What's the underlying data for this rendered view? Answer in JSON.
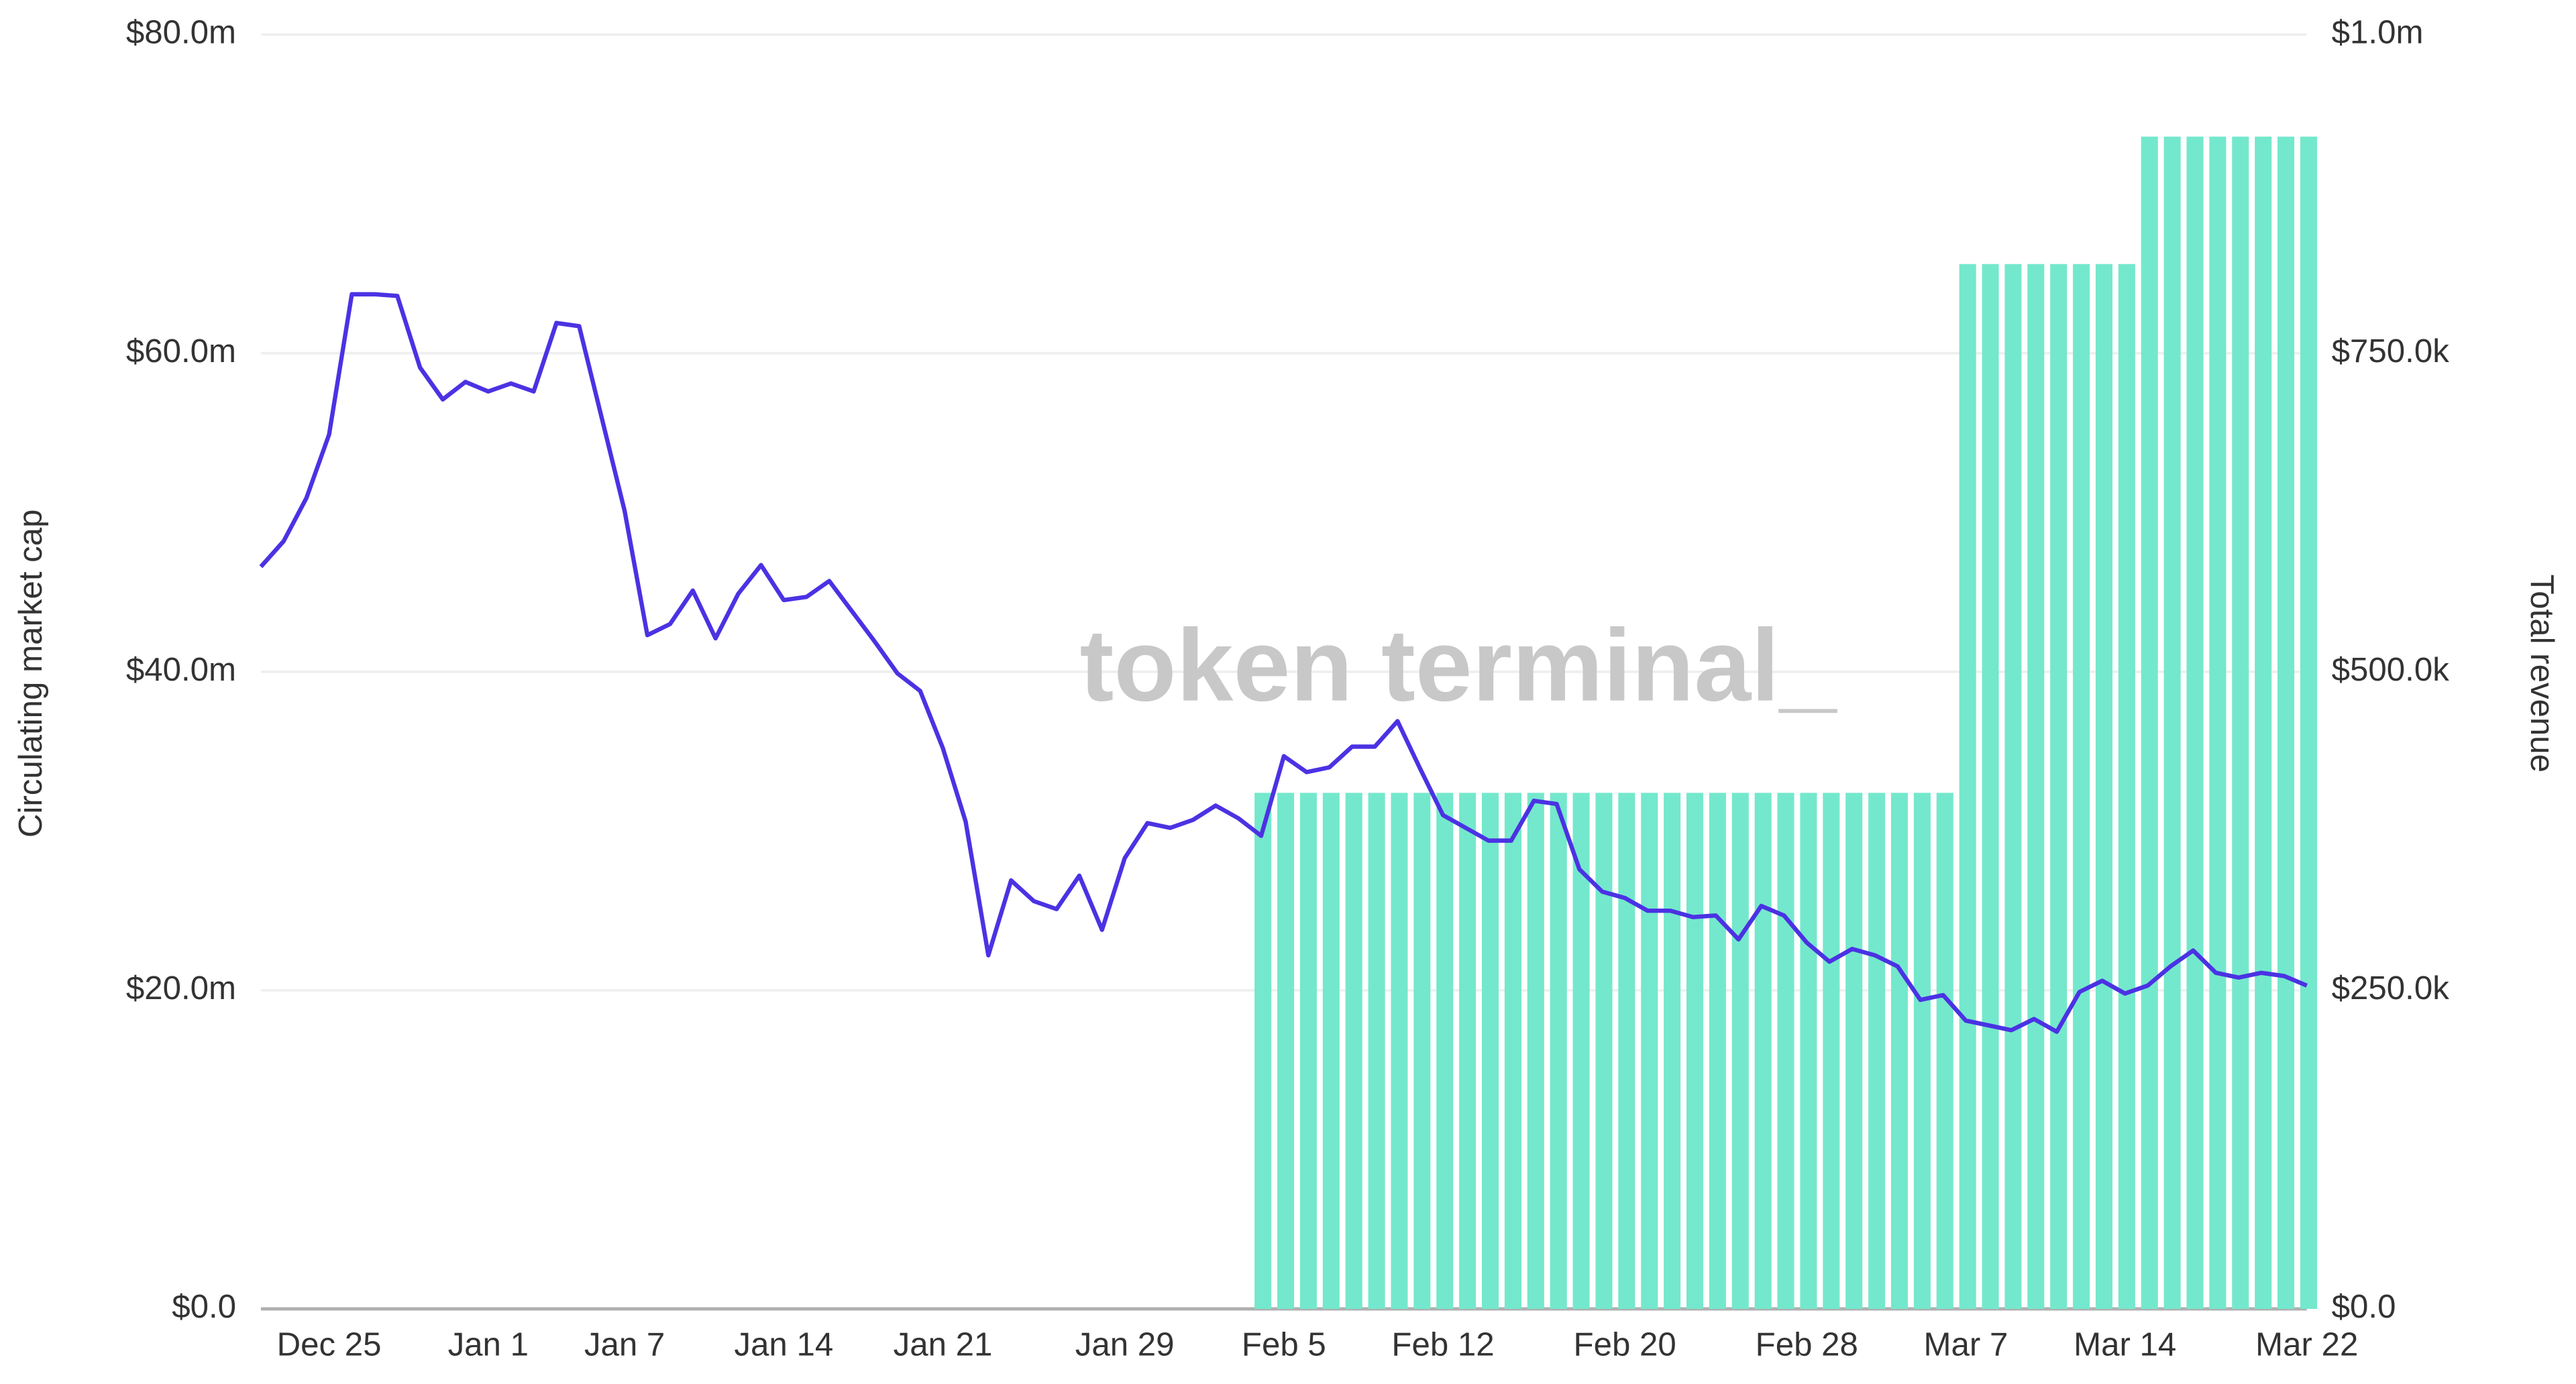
{
  "chart_data": {
    "type": "bar-line",
    "watermark": "token terminal_",
    "y_label": "Circulating market cap",
    "y2_label": "Total revenue",
    "categories": [
      null,
      null,
      null,
      "Dec 25",
      null,
      null,
      null,
      null,
      null,
      null,
      "Jan 1",
      null,
      null,
      null,
      null,
      null,
      "Jan 7",
      null,
      null,
      null,
      null,
      null,
      null,
      "Jan 14",
      null,
      null,
      null,
      null,
      null,
      null,
      "Jan 21",
      null,
      null,
      null,
      null,
      null,
      null,
      null,
      "Jan 29",
      null,
      null,
      null,
      null,
      null,
      null,
      "Feb 5",
      null,
      null,
      null,
      null,
      null,
      null,
      "Feb 12",
      null,
      null,
      null,
      null,
      null,
      null,
      null,
      "Feb 20",
      null,
      null,
      null,
      null,
      null,
      null,
      null,
      "Feb 28",
      null,
      null,
      null,
      null,
      null,
      null,
      "Mar 7",
      null,
      null,
      null,
      null,
      null,
      null,
      "Mar 14",
      null,
      null,
      null,
      null,
      null,
      null,
      null,
      "Mar 22"
    ],
    "series": [
      {
        "name": "Circulating market cap",
        "type": "line",
        "color": "#4b32e3",
        "axis": "y",
        "values": [
          46.6,
          48.2,
          50.9,
          54.9,
          63.7,
          63.7,
          63.6,
          59.1,
          57.1,
          58.2,
          57.6,
          58.1,
          57.6,
          61.9,
          61.7,
          55.9,
          50.1,
          42.3,
          43.0,
          45.1,
          42.1,
          44.9,
          46.7,
          44.5,
          44.7,
          45.7,
          43.8,
          41.9,
          39.9,
          38.8,
          35.2,
          30.6,
          22.2,
          26.9,
          25.6,
          25.1,
          27.2,
          23.8,
          28.3,
          30.5,
          30.2,
          30.7,
          31.6,
          30.8,
          29.7,
          34.7,
          33.7,
          34.0,
          35.3,
          35.3,
          36.9,
          33.9,
          31.0,
          30.2,
          29.4,
          29.4,
          31.9,
          31.7,
          27.6,
          26.2,
          25.8,
          25.0,
          25.0,
          24.6,
          24.7,
          23.2,
          25.3,
          24.7,
          23.0,
          21.8,
          22.6,
          22.2,
          21.5,
          19.4,
          19.7,
          18.1,
          17.8,
          17.5,
          18.2,
          17.4,
          19.9,
          20.6,
          19.8,
          20.3,
          21.5,
          22.5,
          21.1,
          20.8,
          21.1,
          20.9,
          20.3
        ]
      },
      {
        "name": "Total revenue",
        "type": "bar",
        "color": "#74e8cc",
        "axis": "y2",
        "values": [
          null,
          null,
          null,
          null,
          null,
          null,
          null,
          null,
          null,
          null,
          null,
          null,
          null,
          null,
          null,
          null,
          null,
          null,
          null,
          null,
          null,
          null,
          null,
          null,
          null,
          null,
          null,
          null,
          null,
          null,
          null,
          null,
          null,
          null,
          null,
          null,
          null,
          null,
          null,
          null,
          null,
          null,
          null,
          null,
          405000,
          405000,
          405000,
          405000,
          405000,
          405000,
          405000,
          405000,
          405000,
          405000,
          405000,
          405000,
          405000,
          405000,
          405000,
          405000,
          405000,
          405000,
          405000,
          405000,
          405000,
          405000,
          405000,
          405000,
          405000,
          405000,
          405000,
          405000,
          405000,
          405000,
          405000,
          820000,
          820000,
          820000,
          820000,
          820000,
          820000,
          820000,
          820000,
          920000,
          920000,
          920000,
          920000,
          920000,
          920000,
          920000,
          920000
        ]
      }
    ],
    "ylim": [
      0,
      80
    ],
    "yticks": [
      {
        "value": 0,
        "label": "$0.0"
      },
      {
        "value": 20,
        "label": "$20.0m"
      },
      {
        "value": 40,
        "label": "$40.0m"
      },
      {
        "value": 60,
        "label": "$60.0m"
      },
      {
        "value": 80,
        "label": "$80.0m"
      }
    ],
    "y2lim": [
      0,
      1000000
    ],
    "y2ticks": [
      {
        "value": 0,
        "label": "$0.0"
      },
      {
        "value": 250000,
        "label": "$250.0k"
      },
      {
        "value": 500000,
        "label": "$500.0k"
      },
      {
        "value": 750000,
        "label": "$750.0k"
      },
      {
        "value": 1000000,
        "label": "$1.0m"
      }
    ],
    "grid": true
  }
}
